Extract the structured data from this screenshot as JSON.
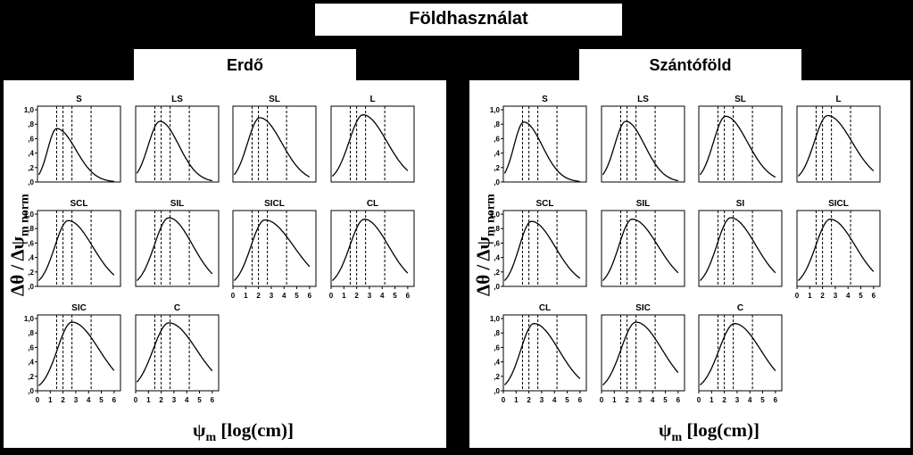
{
  "header": {
    "title": "Földhasználat"
  },
  "panels": [
    {
      "title": "Erdő"
    },
    {
      "title": "Szántóföld"
    }
  ],
  "axes": {
    "ylabel": {
      "main": "Δθ / Δψ",
      "sub": "m norm"
    },
    "xlabel": {
      "main": "ψ",
      "sub": "m",
      "rest": " [log(cm)]"
    }
  },
  "chart_data": [
    {
      "type": "line",
      "title": "Erdő",
      "xlim": [
        0,
        6.5
      ],
      "ylim": [
        0,
        1.05
      ],
      "x_ticks": [
        "0",
        "1",
        "2",
        "3",
        "4",
        "5",
        "6"
      ],
      "y_ticks": [
        ",0",
        ",2",
        ",4",
        ",6",
        ",8",
        "1,0"
      ],
      "grid": false,
      "ref_lines_x": [
        1.5,
        2.0,
        2.7,
        4.2
      ],
      "series": [
        {
          "name": "S",
          "peak_x": 1.5,
          "peak_y": 0.74,
          "x": [
            0.1,
            1.5,
            3.0,
            4.5,
            6.0
          ],
          "y": [
            0.1,
            0.74,
            0.33,
            0.1,
            0.03
          ]
        },
        {
          "name": "LS",
          "peak_x": 1.9,
          "peak_y": 0.84,
          "x": [
            0.1,
            1.9,
            3.0,
            4.5,
            6.0
          ],
          "y": [
            0.12,
            0.84,
            0.48,
            0.18,
            0.07
          ]
        },
        {
          "name": "SL",
          "peak_x": 2.1,
          "peak_y": 0.89,
          "x": [
            0.1,
            2.1,
            3.0,
            4.5,
            6.0
          ],
          "y": [
            0.1,
            0.89,
            0.7,
            0.34,
            0.12
          ]
        },
        {
          "name": "L",
          "peak_x": 2.5,
          "peak_y": 0.93,
          "x": [
            0.1,
            2.5,
            3.0,
            4.5,
            6.0
          ],
          "y": [
            0.08,
            0.93,
            0.88,
            0.52,
            0.25
          ]
        },
        {
          "name": "SCL",
          "peak_x": 2.4,
          "peak_y": 0.91,
          "x": [
            0.1,
            2.4,
            3.0,
            4.5,
            6.0
          ],
          "y": [
            0.08,
            0.91,
            0.85,
            0.5,
            0.25
          ]
        },
        {
          "name": "SIL",
          "peak_x": 2.6,
          "peak_y": 0.95,
          "x": [
            0.1,
            2.6,
            3.0,
            4.5,
            6.0
          ],
          "y": [
            0.08,
            0.95,
            0.9,
            0.56,
            0.26
          ]
        },
        {
          "name": "SICL",
          "peak_x": 2.5,
          "peak_y": 0.92,
          "x": [
            0.1,
            2.5,
            3.0,
            4.5,
            6.0
          ],
          "y": [
            0.08,
            0.92,
            0.88,
            0.62,
            0.35
          ]
        },
        {
          "name": "CL",
          "peak_x": 2.6,
          "peak_y": 0.93,
          "x": [
            0.1,
            2.6,
            3.0,
            4.5,
            6.0
          ],
          "y": [
            0.08,
            0.93,
            0.88,
            0.56,
            0.28
          ]
        },
        {
          "name": "SIC",
          "peak_x": 2.7,
          "peak_y": 0.95,
          "x": [
            0.1,
            2.7,
            3.0,
            4.5,
            6.0
          ],
          "y": [
            0.07,
            0.95,
            0.92,
            0.66,
            0.42
          ]
        },
        {
          "name": "C",
          "peak_x": 2.6,
          "peak_y": 0.94,
          "x": [
            0.1,
            2.6,
            3.0,
            4.5,
            6.0
          ],
          "y": [
            0.12,
            0.94,
            0.9,
            0.64,
            0.42
          ]
        }
      ]
    },
    {
      "type": "line",
      "title": "Szántóföld",
      "xlim": [
        0,
        6.5
      ],
      "ylim": [
        0,
        1.05
      ],
      "x_ticks": [
        "0",
        "1",
        "2",
        "3",
        "4",
        "5",
        "6"
      ],
      "y_ticks": [
        ",0",
        ",2",
        ",4",
        ",6",
        ",8",
        "1,0"
      ],
      "grid": false,
      "ref_lines_x": [
        1.5,
        2.0,
        2.7,
        4.2
      ],
      "series": [
        {
          "name": "S",
          "peak_x": 1.6,
          "peak_y": 0.83,
          "x": [
            0.1,
            1.6,
            3.0,
            4.5,
            6.0
          ],
          "y": [
            0.12,
            0.83,
            0.35,
            0.11,
            0.04
          ]
        },
        {
          "name": "LS",
          "peak_x": 1.9,
          "peak_y": 0.84,
          "x": [
            0.1,
            1.9,
            3.0,
            4.5,
            6.0
          ],
          "y": [
            0.1,
            0.84,
            0.5,
            0.18,
            0.06
          ]
        },
        {
          "name": "SL",
          "peak_x": 2.1,
          "peak_y": 0.91,
          "x": [
            0.1,
            2.1,
            3.0,
            4.5,
            6.0
          ],
          "y": [
            0.1,
            0.91,
            0.72,
            0.34,
            0.14
          ]
        },
        {
          "name": "L",
          "peak_x": 2.4,
          "peak_y": 0.92,
          "x": [
            0.1,
            2.4,
            3.0,
            4.5,
            6.0
          ],
          "y": [
            0.08,
            0.92,
            0.86,
            0.5,
            0.24
          ]
        },
        {
          "name": "SCL",
          "peak_x": 2.2,
          "peak_y": 0.9,
          "x": [
            0.1,
            2.2,
            3.0,
            4.5,
            6.0
          ],
          "y": [
            0.08,
            0.9,
            0.78,
            0.42,
            0.22
          ]
        },
        {
          "name": "SIL",
          "peak_x": 2.4,
          "peak_y": 0.93,
          "x": [
            0.1,
            2.4,
            3.0,
            4.5,
            6.0
          ],
          "y": [
            0.08,
            0.93,
            0.86,
            0.54,
            0.28
          ]
        },
        {
          "name": "SI",
          "peak_x": 2.5,
          "peak_y": 0.95,
          "x": [
            0.1,
            2.5,
            3.0,
            4.5,
            6.0
          ],
          "y": [
            0.08,
            0.95,
            0.9,
            0.56,
            0.3
          ]
        },
        {
          "name": "SICL",
          "peak_x": 2.6,
          "peak_y": 0.93,
          "x": [
            0.1,
            2.6,
            3.0,
            4.5,
            6.0
          ],
          "y": [
            0.08,
            0.93,
            0.88,
            0.58,
            0.3
          ]
        },
        {
          "name": "CL",
          "peak_x": 2.4,
          "peak_y": 0.93,
          "x": [
            0.1,
            2.4,
            3.0,
            4.5,
            6.0
          ],
          "y": [
            0.08,
            0.93,
            0.84,
            0.52,
            0.3
          ]
        },
        {
          "name": "SIC",
          "peak_x": 2.7,
          "peak_y": 0.95,
          "x": [
            0.1,
            2.7,
            3.0,
            4.5,
            6.0
          ],
          "y": [
            0.08,
            0.95,
            0.92,
            0.64,
            0.4
          ]
        },
        {
          "name": "C",
          "peak_x": 2.8,
          "peak_y": 0.93,
          "x": [
            0.1,
            2.8,
            3.0,
            4.5,
            6.0
          ],
          "y": [
            0.08,
            0.93,
            0.92,
            0.66,
            0.42
          ]
        }
      ]
    }
  ]
}
